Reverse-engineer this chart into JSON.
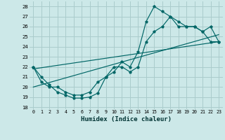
{
  "xlabel": "Humidex (Indice chaleur)",
  "bg_color": "#cce8e8",
  "grid_color": "#aacccc",
  "line_color": "#006666",
  "xlim": [
    -0.5,
    23.5
  ],
  "ylim": [
    17.8,
    28.5
  ],
  "yticks": [
    18,
    19,
    20,
    21,
    22,
    23,
    24,
    25,
    26,
    27,
    28
  ],
  "xticks": [
    0,
    1,
    2,
    3,
    4,
    5,
    6,
    7,
    8,
    9,
    10,
    11,
    12,
    13,
    14,
    15,
    16,
    17,
    18,
    19,
    20,
    21,
    22,
    23
  ],
  "line1_x": [
    0,
    1,
    2,
    3,
    4,
    5,
    6,
    7,
    8,
    9,
    10,
    11,
    12,
    13,
    14,
    15,
    16,
    17,
    18,
    19,
    20,
    21,
    22,
    23
  ],
  "line1_y": [
    22,
    21,
    20.2,
    19.5,
    19.2,
    18.9,
    18.9,
    19.0,
    19.4,
    21,
    21.5,
    22.5,
    22,
    23.5,
    26.5,
    28,
    27.5,
    27,
    26.5,
    26,
    26,
    25.5,
    26,
    24.5
  ],
  "line2_x": [
    0,
    1,
    2,
    3,
    4,
    5,
    6,
    7,
    8,
    9,
    10,
    11,
    12,
    13,
    14,
    15,
    16,
    17,
    18,
    19,
    20,
    21,
    22,
    23
  ],
  "line2_y": [
    22,
    20.5,
    20,
    20,
    19.5,
    19.2,
    19.2,
    19.5,
    20.5,
    21,
    22,
    22,
    21.5,
    22,
    24.5,
    25.5,
    26,
    27,
    26,
    26,
    26,
    25.5,
    24.5,
    24.5
  ],
  "line3_x": [
    0,
    23
  ],
  "line3_y": [
    21.8,
    24.5
  ],
  "line4_x": [
    0,
    23
  ],
  "line4_y": [
    20.0,
    25.2
  ]
}
